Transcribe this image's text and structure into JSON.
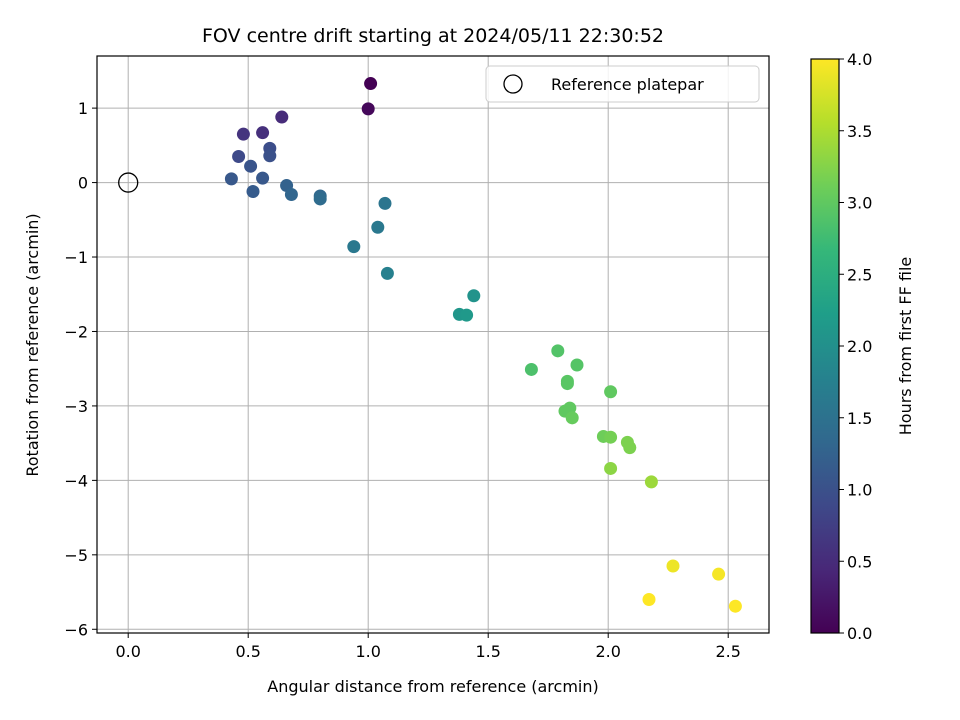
{
  "chart_data": {
    "type": "scatter",
    "title": "FOV centre drift starting at 2024/05/11 22:30:52",
    "xlabel": "Angular distance from reference (arcmin)",
    "ylabel": "Rotation from reference (arcmin)",
    "xlim": [
      -0.13,
      2.67
    ],
    "ylim": [
      -6.05,
      1.7
    ],
    "xticks": [
      0.0,
      0.5,
      1.0,
      1.5,
      2.0,
      2.5
    ],
    "xtick_labels": [
      "0.0",
      "0.5",
      "1.0",
      "1.5",
      "2.0",
      "2.5"
    ],
    "yticks": [
      1,
      0,
      -1,
      -2,
      -3,
      -4,
      -5,
      -6
    ],
    "ytick_labels": [
      "1",
      "0",
      "−1",
      "−2",
      "−3",
      "−4",
      "−5",
      "−6"
    ],
    "grid": true,
    "legend": {
      "placement": "top-right",
      "entries": [
        "Reference platepar"
      ]
    },
    "reference_point": {
      "x": 0.0,
      "y": 0.0
    },
    "colorbar": {
      "label": "Hours from first FF file",
      "range": [
        0.0,
        4.0
      ],
      "ticks": [
        0.0,
        0.5,
        1.0,
        1.5,
        2.0,
        2.5,
        3.0,
        3.5,
        4.0
      ],
      "tick_labels": [
        "0.0",
        "0.5",
        "1.0",
        "1.5",
        "2.0",
        "2.5",
        "3.0",
        "3.5",
        "4.0"
      ],
      "colormap": [
        "#440154",
        "#482878",
        "#3e4989",
        "#31688e",
        "#26828e",
        "#1f9e89",
        "#35b779",
        "#6ece58",
        "#b5de2b",
        "#fde725"
      ]
    },
    "series": [
      {
        "points": [
          {
            "x": 1.01,
            "y": 1.33,
            "hours": 0.0
          },
          {
            "x": 1.0,
            "y": 0.99,
            "hours": 0.08
          },
          {
            "x": 0.64,
            "y": 0.88,
            "hours": 0.5
          },
          {
            "x": 0.56,
            "y": 0.67,
            "hours": 0.55
          },
          {
            "x": 0.48,
            "y": 0.65,
            "hours": 0.6
          },
          {
            "x": 0.46,
            "y": 0.35,
            "hours": 0.9
          },
          {
            "x": 0.59,
            "y": 0.46,
            "hours": 0.95
          },
          {
            "x": 0.59,
            "y": 0.36,
            "hours": 1.0
          },
          {
            "x": 0.51,
            "y": 0.22,
            "hours": 1.05
          },
          {
            "x": 0.43,
            "y": 0.05,
            "hours": 1.1
          },
          {
            "x": 0.56,
            "y": 0.06,
            "hours": 1.1
          },
          {
            "x": 0.52,
            "y": -0.12,
            "hours": 1.15
          },
          {
            "x": 0.66,
            "y": -0.04,
            "hours": 1.25
          },
          {
            "x": 0.68,
            "y": -0.16,
            "hours": 1.3
          },
          {
            "x": 0.8,
            "y": -0.18,
            "hours": 1.35
          },
          {
            "x": 0.8,
            "y": -0.22,
            "hours": 1.4
          },
          {
            "x": 1.07,
            "y": -0.28,
            "hours": 1.55
          },
          {
            "x": 1.04,
            "y": -0.6,
            "hours": 1.6
          },
          {
            "x": 0.94,
            "y": -0.86,
            "hours": 1.6
          },
          {
            "x": 1.08,
            "y": -1.22,
            "hours": 1.75
          },
          {
            "x": 1.44,
            "y": -1.52,
            "hours": 2.05
          },
          {
            "x": 1.38,
            "y": -1.77,
            "hours": 2.1
          },
          {
            "x": 1.41,
            "y": -1.78,
            "hours": 2.15
          },
          {
            "x": 1.68,
            "y": -2.51,
            "hours": 2.85
          },
          {
            "x": 1.79,
            "y": -2.26,
            "hours": 2.9
          },
          {
            "x": 1.87,
            "y": -2.45,
            "hours": 2.92
          },
          {
            "x": 1.83,
            "y": -2.67,
            "hours": 2.95
          },
          {
            "x": 1.83,
            "y": -2.7,
            "hours": 2.95
          },
          {
            "x": 2.01,
            "y": -2.81,
            "hours": 3.0
          },
          {
            "x": 1.84,
            "y": -3.03,
            "hours": 3.0
          },
          {
            "x": 1.82,
            "y": -3.07,
            "hours": 3.0
          },
          {
            "x": 1.85,
            "y": -3.16,
            "hours": 3.05
          },
          {
            "x": 1.98,
            "y": -3.41,
            "hours": 3.1
          },
          {
            "x": 2.01,
            "y": -3.42,
            "hours": 3.15
          },
          {
            "x": 2.08,
            "y": -3.49,
            "hours": 3.2
          },
          {
            "x": 2.09,
            "y": -3.56,
            "hours": 3.2
          },
          {
            "x": 2.01,
            "y": -3.84,
            "hours": 3.3
          },
          {
            "x": 2.18,
            "y": -4.02,
            "hours": 3.4
          },
          {
            "x": 2.27,
            "y": -5.15,
            "hours": 3.9
          },
          {
            "x": 2.46,
            "y": -5.26,
            "hours": 3.95
          },
          {
            "x": 2.17,
            "y": -5.6,
            "hours": 4.0
          },
          {
            "x": 2.53,
            "y": -5.69,
            "hours": 4.0
          }
        ]
      }
    ]
  }
}
